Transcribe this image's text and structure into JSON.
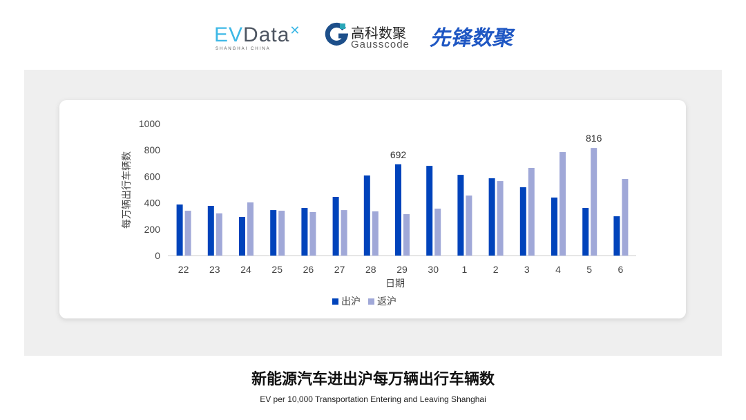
{
  "logos": {
    "evdata": "EVData",
    "evdata_sub": "SHANGHAI CHINA",
    "gauss_cn": "高科数聚",
    "gauss_en": "Gausscode",
    "xianfeng": "先锋数聚"
  },
  "caption": {
    "title": "新能源汽车进出沪每万辆出行车辆数",
    "subtitle": "EV per 10,000 Transportation Entering and Leaving Shanghai"
  },
  "chart_data": {
    "type": "bar",
    "xlabel": "日期",
    "ylabel": "每万辆出行车辆数",
    "ylim": [
      0,
      1000
    ],
    "yticks": [
      0,
      200,
      400,
      600,
      800,
      1000
    ],
    "categories": [
      "22",
      "23",
      "24",
      "25",
      "26",
      "27",
      "28",
      "29",
      "30",
      "1",
      "2",
      "3",
      "4",
      "5",
      "6"
    ],
    "series": [
      {
        "name": "出沪",
        "color": "#0043bb",
        "values": [
          387,
          377,
          293,
          345,
          361,
          445,
          607,
          692,
          680,
          612,
          586,
          518,
          440,
          361,
          298
        ]
      },
      {
        "name": "返沪",
        "color": "#a0a8d8",
        "values": [
          340,
          320,
          403,
          340,
          330,
          345,
          335,
          314,
          356,
          455,
          565,
          665,
          785,
          816,
          581
        ]
      }
    ],
    "data_labels": [
      {
        "series": 0,
        "category": "29",
        "text": "692"
      },
      {
        "series": 1,
        "category": "5",
        "text": "816"
      }
    ],
    "legend": "bottom",
    "grid": false
  }
}
